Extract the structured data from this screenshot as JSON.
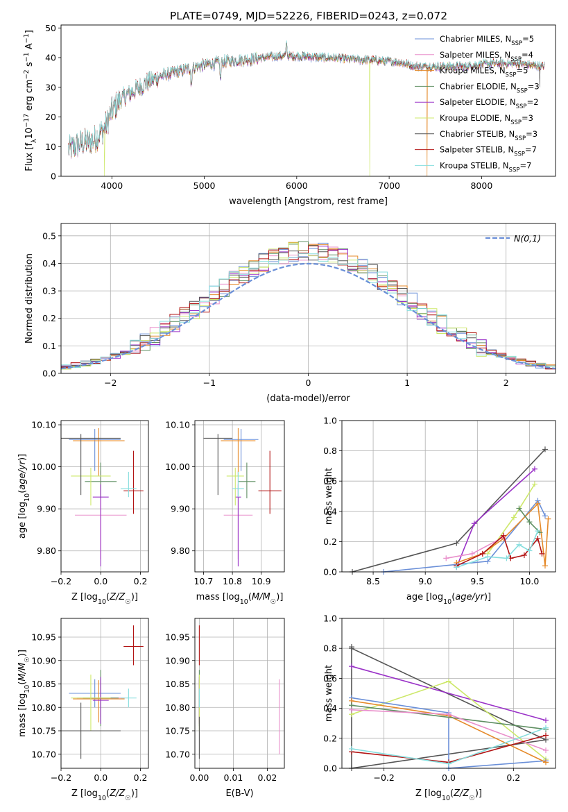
{
  "figure": {
    "title": "PLATE=0749, MJD=52226, FIBERID=0243, z=0.072"
  },
  "colors": {
    "chabrier_miles": "#6a8fd8",
    "salpeter_miles": "#e98fcb",
    "kroupa_miles": "#e58a2a",
    "chabrier_elodie": "#5f8f62",
    "salpeter_elodie": "#9a32c8",
    "kroupa_elodie": "#cde86a",
    "chabrier_stelib": "#555555",
    "salpeter_stelib": "#b21414",
    "kroupa_stelib": "#86dede",
    "gauss": "#6a8fd8"
  },
  "chart_data": [
    {
      "id": "spectrum",
      "type": "line",
      "xlabel": "wavelength [Angstrom, rest frame]",
      "ylabel": "Flux [f_λ 10^-17 erg cm^-2 s^-1 A^-1]",
      "xlim": [
        3450,
        8800
      ],
      "ylim": [
        0,
        51
      ],
      "xticks": [
        4000,
        5000,
        6000,
        7000,
        8000
      ],
      "yticks": [
        0,
        10,
        20,
        30,
        40,
        50
      ],
      "grid": false,
      "legend_position": "top-right",
      "legend": [
        {
          "label": "Chabrier MILES, N",
          "sub": "SSP",
          "suffix": "=5",
          "color_key": "chabrier_miles"
        },
        {
          "label": "Salpeter MILES, N",
          "sub": "SSP",
          "suffix": "=4",
          "color_key": "salpeter_miles"
        },
        {
          "label": "Kroupa MILES, N",
          "sub": "SSP",
          "suffix": "=5",
          "color_key": "kroupa_miles"
        },
        {
          "label": "Chabrier ELODIE, N",
          "sub": "SSP",
          "suffix": "=3",
          "color_key": "chabrier_elodie"
        },
        {
          "label": "Salpeter ELODIE, N",
          "sub": "SSP",
          "suffix": "=2",
          "color_key": "salpeter_elodie"
        },
        {
          "label": "Kroupa ELODIE, N",
          "sub": "SSP",
          "suffix": "=3",
          "color_key": "kroupa_elodie"
        },
        {
          "label": "Chabrier STELIB, N",
          "sub": "SSP",
          "suffix": "=3",
          "color_key": "chabrier_stelib"
        },
        {
          "label": "Salpeter STELIB, N",
          "sub": "SSP",
          "suffix": "=7",
          "color_key": "salpeter_stelib"
        },
        {
          "label": "Kroupa STELIB, N",
          "sub": "SSP",
          "suffix": "=7",
          "color_key": "kroupa_stelib"
        }
      ],
      "continuum": [
        [
          3550,
          9
        ],
        [
          3650,
          11
        ],
        [
          3800,
          12
        ],
        [
          3920,
          16
        ],
        [
          4000,
          22
        ],
        [
          4100,
          26
        ],
        [
          4250,
          29
        ],
        [
          4400,
          32
        ],
        [
          4550,
          34
        ],
        [
          4800,
          36
        ],
        [
          5000,
          37.5
        ],
        [
          5200,
          38.5
        ],
        [
          5500,
          39.5
        ],
        [
          5800,
          40.5
        ],
        [
          6000,
          40.5
        ],
        [
          6300,
          40
        ],
        [
          6600,
          39.5
        ],
        [
          6900,
          39
        ],
        [
          7100,
          38.5
        ],
        [
          7300,
          37
        ],
        [
          7500,
          37
        ],
        [
          7800,
          37
        ],
        [
          8100,
          38
        ],
        [
          8400,
          38
        ],
        [
          8650,
          37
        ]
      ],
      "drops": [
        {
          "x": 3920,
          "series": "kroupa_elodie",
          "y": 0
        },
        {
          "x": 6790,
          "series": "kroupa_elodie",
          "y": 0
        },
        {
          "x": 7410,
          "series": "kroupa_miles",
          "y": 0
        },
        {
          "x": 8630,
          "series": "chabrier_stelib",
          "y": 30
        }
      ]
    },
    {
      "id": "residual-histogram",
      "type": "histogram",
      "xlabel": "(data-model)/error",
      "ylabel": "Normed distribution",
      "xlim": [
        -2.5,
        2.5
      ],
      "ylim": [
        0,
        0.545
      ],
      "xticks": [
        -2,
        -1,
        0,
        1,
        2
      ],
      "yticks": [
        0.0,
        0.1,
        0.2,
        0.3,
        0.4,
        0.5
      ],
      "grid": true,
      "bin_width": 0.1,
      "legend_position": "top-right",
      "gauss_label": "N(0,1)",
      "series_keys": [
        "chabrier_miles",
        "salpeter_miles",
        "kroupa_miles",
        "chabrier_elodie",
        "salpeter_elodie",
        "kroupa_elodie",
        "chabrier_stelib",
        "salpeter_stelib",
        "kroupa_stelib"
      ]
    },
    {
      "id": "age-vs-Z",
      "type": "errorbar",
      "xlabel": "Z [log10(Z/Z_sun)]",
      "ylabel": "age [log10(age/yr)]",
      "xlim": [
        -0.2,
        0.24
      ],
      "ylim": [
        9.75,
        10.11
      ],
      "xticks": [
        -0.2,
        0.0,
        0.2
      ],
      "yticks": [
        9.8,
        9.9,
        10.0,
        10.1
      ],
      "grid": true,
      "points": [
        {
          "key": "chabrier_miles",
          "x": -0.03,
          "xerr": 0.13,
          "y": 10.065,
          "yerr": [
            0.075,
            0.025
          ]
        },
        {
          "key": "salpeter_miles",
          "x": 0.0,
          "xerr": 0.13,
          "y": 9.885,
          "yerr": [
            0.105,
            0.105
          ]
        },
        {
          "key": "kroupa_miles",
          "x": -0.01,
          "xerr": 0.13,
          "y": 10.062,
          "yerr": [
            0.085,
            0.03
          ]
        },
        {
          "key": "chabrier_elodie",
          "x": 0.0,
          "xerr": 0.08,
          "y": 9.965,
          "yerr": [
            0.04,
            0.045
          ]
        },
        {
          "key": "salpeter_elodie",
          "x": 0.0,
          "xerr": 0.04,
          "y": 9.928,
          "yerr": [
            0.165,
            0.03
          ]
        },
        {
          "key": "kroupa_elodie",
          "x": -0.05,
          "xerr": 0.1,
          "y": 9.978,
          "yerr": [
            0.07,
            0.02
          ]
        },
        {
          "key": "chabrier_stelib",
          "x": -0.1,
          "xerr": 0.2,
          "y": 10.068,
          "yerr": [
            0.135,
            0.01
          ]
        },
        {
          "key": "salpeter_stelib",
          "x": 0.165,
          "xerr": 0.05,
          "y": 9.943,
          "yerr": [
            0.055,
            0.095
          ]
        },
        {
          "key": "kroupa_stelib",
          "x": 0.14,
          "xerr": 0.04,
          "y": 9.948,
          "yerr": [
            0.02,
            0.04
          ]
        }
      ]
    },
    {
      "id": "age-vs-mass",
      "type": "errorbar",
      "xlabel": "mass [log10(M/M_sun)]",
      "xlim": [
        10.67,
        10.98
      ],
      "ylim": [
        9.75,
        10.11
      ],
      "xticks": [
        10.7,
        10.8,
        10.9
      ],
      "yticks": [
        9.8,
        9.9,
        10.0,
        10.1
      ],
      "grid": true,
      "points": [
        {
          "key": "chabrier_miles",
          "x": 10.83,
          "xerr": 0.06,
          "y": 10.065,
          "yerr": [
            0.075,
            0.025
          ]
        },
        {
          "key": "salpeter_miles",
          "x": 10.82,
          "xerr": 0.05,
          "y": 9.885,
          "yerr": [
            0.105,
            0.105
          ]
        },
        {
          "key": "kroupa_miles",
          "x": 10.82,
          "xerr": 0.06,
          "y": 10.062,
          "yerr": [
            0.085,
            0.03
          ]
        },
        {
          "key": "chabrier_elodie",
          "x": 10.85,
          "xerr": 0.03,
          "y": 9.965,
          "yerr": [
            0.04,
            0.045
          ]
        },
        {
          "key": "salpeter_elodie",
          "x": 10.82,
          "xerr": 0.01,
          "y": 9.928,
          "yerr": [
            0.165,
            0.03
          ]
        },
        {
          "key": "kroupa_elodie",
          "x": 10.81,
          "xerr": 0.03,
          "y": 9.978,
          "yerr": [
            0.07,
            0.02
          ]
        },
        {
          "key": "chabrier_stelib",
          "x": 10.75,
          "xerr": 0.05,
          "y": 10.068,
          "yerr": [
            0.135,
            0.01
          ]
        },
        {
          "key": "salpeter_stelib",
          "x": 10.93,
          "xerr": 0.04,
          "y": 9.943,
          "yerr": [
            0.055,
            0.095
          ]
        },
        {
          "key": "kroupa_stelib",
          "x": 10.82,
          "xerr": 0.02,
          "y": 9.948,
          "yerr": [
            0.02,
            0.04
          ]
        }
      ]
    },
    {
      "id": "weight-vs-age",
      "type": "line",
      "xlabel": "age [log10(age/yr)]",
      "ylabel": "mass weight",
      "xlim": [
        8.2,
        10.25
      ],
      "ylim": [
        0,
        1.0
      ],
      "xticks": [
        8.5,
        9.0,
        9.5,
        10.0
      ],
      "yticks": [
        0.0,
        0.2,
        0.4,
        0.6,
        0.8,
        1.0
      ],
      "grid": true,
      "series": [
        {
          "key": "chabrier_stelib",
          "x": [
            8.3,
            9.3,
            10.15
          ],
          "y": [
            0.0,
            0.19,
            0.81
          ]
        },
        {
          "key": "salpeter_elodie",
          "x": [
            9.3,
            9.47,
            10.05
          ],
          "y": [
            0.03,
            0.32,
            0.68
          ]
        },
        {
          "key": "kroupa_elodie",
          "x": [
            9.6,
            9.85,
            10.05
          ],
          "y": [
            0.12,
            0.36,
            0.58
          ]
        },
        {
          "key": "chabrier_miles",
          "x": [
            8.6,
            9.6,
            10.08,
            10.15
          ],
          "y": [
            0.0,
            0.07,
            0.47,
            0.37
          ]
        },
        {
          "key": "kroupa_miles",
          "x": [
            9.3,
            9.55,
            9.75,
            10.08,
            10.15,
            10.18
          ],
          "y": [
            0.06,
            0.12,
            0.22,
            0.45,
            0.04,
            0.35
          ]
        },
        {
          "key": "chabrier_elodie",
          "x": [
            9.9,
            10.0,
            10.1
          ],
          "y": [
            0.42,
            0.33,
            0.26
          ]
        },
        {
          "key": "salpeter_miles",
          "x": [
            9.2,
            9.45,
            9.75
          ],
          "y": [
            0.09,
            0.12,
            0.23
          ]
        },
        {
          "key": "salpeter_stelib",
          "x": [
            9.3,
            9.55,
            9.75,
            9.82,
            9.95,
            10.08,
            10.12
          ],
          "y": [
            0.04,
            0.12,
            0.24,
            0.09,
            0.11,
            0.22,
            0.12
          ]
        },
        {
          "key": "kroupa_stelib",
          "x": [
            9.3,
            9.6,
            9.78,
            9.9,
            10.0,
            10.08
          ],
          "y": [
            0.03,
            0.1,
            0.09,
            0.18,
            0.14,
            0.27
          ]
        }
      ]
    },
    {
      "id": "mass-vs-Z",
      "type": "errorbar",
      "xlabel": "Z [log10(Z/Z_sun)]",
      "ylabel": "mass [log10(M/M_sun)]",
      "xlim": [
        -0.2,
        0.24
      ],
      "ylim": [
        10.67,
        10.99
      ],
      "xticks": [
        -0.2,
        0.0,
        0.2
      ],
      "yticks": [
        10.7,
        10.75,
        10.8,
        10.85,
        10.9,
        10.95
      ],
      "grid": true,
      "points": [
        {
          "key": "chabrier_miles",
          "x": -0.03,
          "xerr": 0.13,
          "y": 10.83,
          "yerr": [
            0.03,
            0.03
          ]
        },
        {
          "key": "salpeter_miles",
          "x": 0.0,
          "xerr": 0.12,
          "y": 10.82,
          "yerr": [
            0.04,
            0.04
          ]
        },
        {
          "key": "kroupa_miles",
          "x": -0.01,
          "xerr": 0.13,
          "y": 10.818,
          "yerr": [
            0.05,
            0.04
          ]
        },
        {
          "key": "chabrier_elodie",
          "x": 0.0,
          "xerr": 0.09,
          "y": 10.82,
          "yerr": [
            0.06,
            0.06
          ]
        },
        {
          "key": "salpeter_elodie",
          "x": 0.0,
          "xerr": 0.04,
          "y": 10.815,
          "yerr": [
            0.05,
            0.05
          ]
        },
        {
          "key": "kroupa_elodie",
          "x": -0.05,
          "xerr": 0.1,
          "y": 10.82,
          "yerr": [
            0.07,
            0.05
          ]
        },
        {
          "key": "chabrier_stelib",
          "x": -0.1,
          "xerr": 0.2,
          "y": 10.75,
          "yerr": [
            0.06,
            0.06
          ]
        },
        {
          "key": "salpeter_stelib",
          "x": 0.165,
          "xerr": 0.05,
          "y": 10.93,
          "yerr": [
            0.04,
            0.045
          ]
        },
        {
          "key": "kroupa_stelib",
          "x": 0.14,
          "xerr": 0.04,
          "y": 10.82,
          "yerr": [
            0.02,
            0.02
          ]
        }
      ]
    },
    {
      "id": "mass-vs-ebv",
      "type": "errorbar",
      "xlabel": "E(B-V)",
      "xlim": [
        -0.0013,
        0.025
      ],
      "ylim": [
        10.67,
        10.99
      ],
      "xticks": [
        0.0,
        0.01,
        0.02
      ],
      "yticks": [
        10.7,
        10.75,
        10.8,
        10.85,
        10.9,
        10.95
      ],
      "grid": true,
      "points": [
        {
          "key": "chabrier_miles",
          "x": 0.0,
          "xerr": 0.0,
          "y": 10.83,
          "yerr": [
            0.03,
            0.03
          ]
        },
        {
          "key": "salpeter_miles",
          "x": 0.0235,
          "xerr": 0.0,
          "y": 10.78,
          "yerr": [
            0.08,
            0.08
          ]
        },
        {
          "key": "kroupa_miles",
          "x": 0.0,
          "xerr": 0.0,
          "y": 10.818,
          "yerr": [
            0.05,
            0.04
          ]
        },
        {
          "key": "chabrier_elodie",
          "x": 0.0,
          "xerr": 0.0,
          "y": 10.82,
          "yerr": [
            0.06,
            0.06
          ]
        },
        {
          "key": "salpeter_elodie",
          "x": 0.0,
          "xerr": 0.0,
          "y": 10.815,
          "yerr": [
            0.05,
            0.05
          ]
        },
        {
          "key": "kroupa_elodie",
          "x": 0.0,
          "xerr": 0.0,
          "y": 10.82,
          "yerr": [
            0.07,
            0.05
          ]
        },
        {
          "key": "chabrier_stelib",
          "x": 0.0,
          "xerr": 0.0,
          "y": 10.75,
          "yerr": [
            0.06,
            0.03
          ]
        },
        {
          "key": "salpeter_stelib",
          "x": 0.0,
          "xerr": 0.0,
          "y": 10.93,
          "yerr": [
            0.04,
            0.045
          ]
        },
        {
          "key": "kroupa_stelib",
          "x": 0.0,
          "xerr": 0.0,
          "y": 10.82,
          "yerr": [
            0.02,
            0.02
          ]
        }
      ]
    },
    {
      "id": "weight-vs-Z",
      "type": "line",
      "xlabel": "Z [log10(Z/Z_sun)]",
      "ylabel": "mass weight",
      "xlim": [
        -0.33,
        0.33
      ],
      "ylim": [
        0,
        1.0
      ],
      "xticks": [
        -0.2,
        0.0,
        0.2
      ],
      "yticks": [
        0.0,
        0.2,
        0.4,
        0.6,
        0.8,
        1.0
      ],
      "grid": true,
      "series": [
        {
          "key": "chabrier_stelib",
          "x": [
            -0.3,
            -0.3,
            0.3,
            -0.3
          ],
          "y": [
            0.81,
            0.0,
            0.19,
            0.8
          ]
        },
        {
          "key": "salpeter_elodie",
          "x": [
            -0.3,
            0.3
          ],
          "y": [
            0.68,
            0.32
          ]
        },
        {
          "key": "kroupa_elodie",
          "x": [
            -0.3,
            0.0,
            0.3
          ],
          "y": [
            0.36,
            0.58,
            0.06
          ]
        },
        {
          "key": "chabrier_miles",
          "x": [
            -0.3,
            0.0,
            0.0,
            0.3
          ],
          "y": [
            0.47,
            0.37,
            0.0,
            0.05
          ]
        },
        {
          "key": "kroupa_miles",
          "x": [
            -0.3,
            0.0,
            0.3
          ],
          "y": [
            0.45,
            0.35,
            0.04
          ]
        },
        {
          "key": "chabrier_elodie",
          "x": [
            -0.3,
            0.3
          ],
          "y": [
            0.42,
            0.26
          ]
        },
        {
          "key": "salpeter_miles",
          "x": [
            -0.3,
            0.0,
            0.3
          ],
          "y": [
            0.39,
            0.36,
            0.12
          ]
        },
        {
          "key": "salpeter_stelib",
          "x": [
            -0.3,
            0.0,
            0.3
          ],
          "y": [
            0.11,
            0.04,
            0.22
          ]
        },
        {
          "key": "kroupa_stelib",
          "x": [
            -0.3,
            0.0,
            0.3
          ],
          "y": [
            0.13,
            0.03,
            0.27
          ]
        }
      ]
    }
  ]
}
